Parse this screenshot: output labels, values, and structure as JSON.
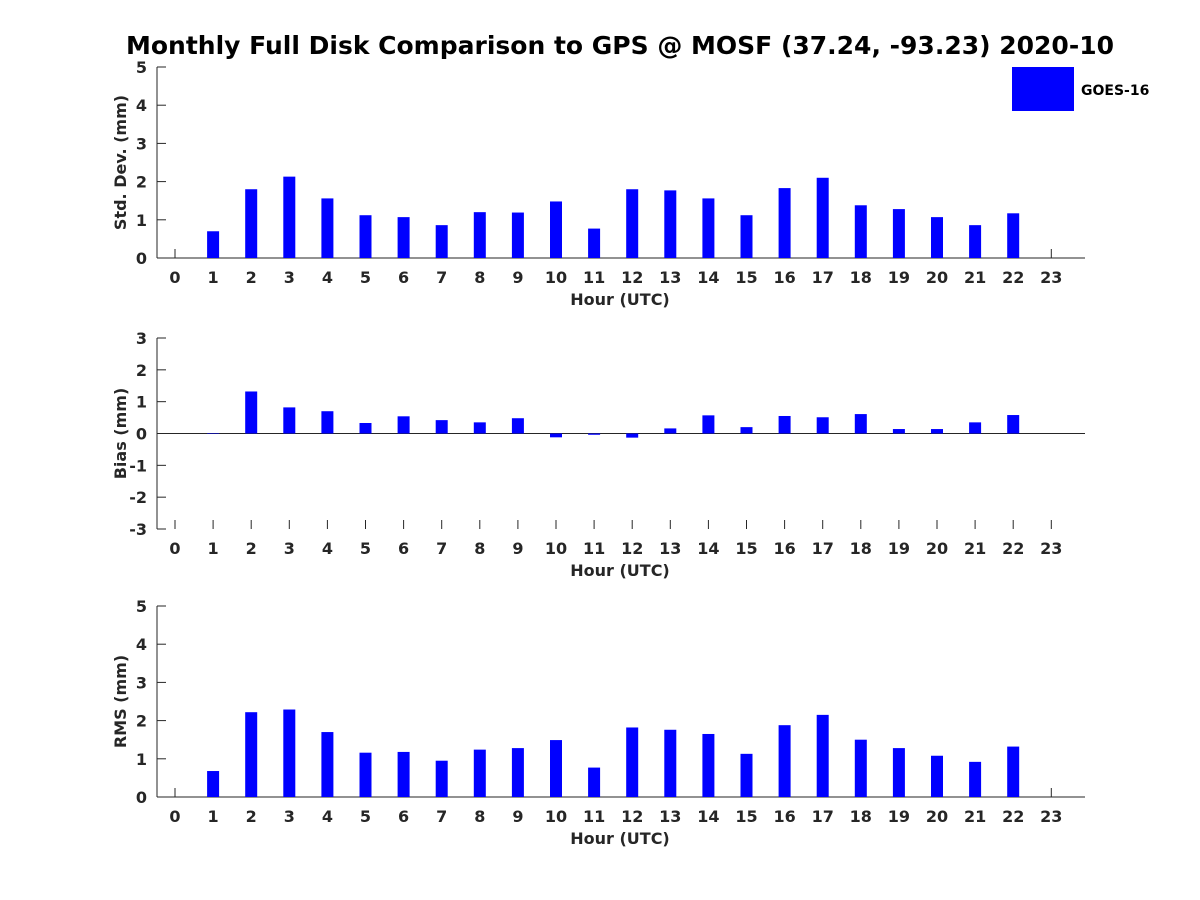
{
  "chart_data": {
    "type": "bar",
    "title": "Monthly Full Disk Comparison to GPS @ MOSF (37.24, -93.23) 2020-10",
    "legend": {
      "label": "GOES-16",
      "color": "#0000ff",
      "position": "top-right"
    },
    "categories": [
      "0",
      "1",
      "2",
      "3",
      "4",
      "5",
      "6",
      "7",
      "8",
      "9",
      "10",
      "11",
      "12",
      "13",
      "14",
      "15",
      "16",
      "17",
      "18",
      "19",
      "20",
      "21",
      "22",
      "23"
    ],
    "panels": [
      {
        "name": "std-dev",
        "xlabel": "Hour (UTC)",
        "ylabel": "Std. Dev. (mm)",
        "ylim": [
          0,
          5
        ],
        "yticks": [
          0,
          1,
          2,
          3,
          4,
          5
        ],
        "values": [
          null,
          0.7,
          1.8,
          2.13,
          1.56,
          1.12,
          1.07,
          0.86,
          1.2,
          1.19,
          1.48,
          0.77,
          1.8,
          1.77,
          1.56,
          1.12,
          1.83,
          2.1,
          1.38,
          1.28,
          1.07,
          0.86,
          1.17,
          null
        ]
      },
      {
        "name": "bias",
        "xlabel": "Hour (UTC)",
        "ylabel": "Bias (mm)",
        "ylim": [
          -3,
          3
        ],
        "yticks": [
          -3,
          -2,
          -1,
          0,
          1,
          2,
          3
        ],
        "values": [
          null,
          0.0,
          1.32,
          0.82,
          0.7,
          0.33,
          0.54,
          0.42,
          0.35,
          0.48,
          -0.12,
          -0.04,
          -0.13,
          0.16,
          0.57,
          0.2,
          0.55,
          0.51,
          0.61,
          0.14,
          0.14,
          0.35,
          0.58,
          null
        ]
      },
      {
        "name": "rms",
        "xlabel": "Hour (UTC)",
        "ylabel": "RMS (mm)",
        "ylim": [
          0,
          5
        ],
        "yticks": [
          0,
          1,
          2,
          3,
          4,
          5
        ],
        "values": [
          null,
          0.68,
          2.22,
          2.29,
          1.7,
          1.16,
          1.18,
          0.95,
          1.24,
          1.28,
          1.49,
          0.77,
          1.82,
          1.76,
          1.65,
          1.13,
          1.88,
          2.15,
          1.5,
          1.28,
          1.08,
          0.92,
          1.32,
          null
        ]
      }
    ]
  }
}
